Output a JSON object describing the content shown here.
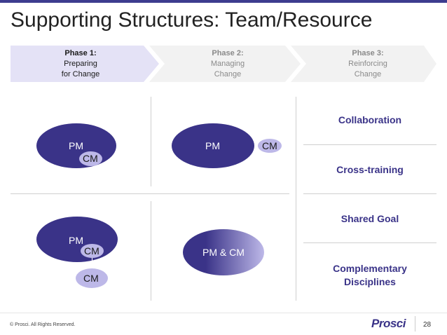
{
  "title": "Supporting Structures: Team/Resource",
  "phases": [
    {
      "title": "Phase 1:",
      "line1": "Preparing",
      "line2": "for Change",
      "active": true
    },
    {
      "title": "Phase 2:",
      "line1": "Managing",
      "line2": "Change",
      "active": false
    },
    {
      "title": "Phase 3:",
      "line1": "Reinforcing",
      "line2": "Change",
      "active": false
    }
  ],
  "diagrams": {
    "phase1": {
      "pm": "PM",
      "cm": "CM"
    },
    "phase2": {
      "pm": "PM",
      "cm": "CM"
    },
    "phase3": {
      "pm": "PM",
      "cm_inner": "CM",
      "cm_outer": "CM"
    },
    "phase4": {
      "combined": "PM & CM"
    }
  },
  "right_labels": {
    "collaboration": "Collaboration",
    "cross_training": "Cross-training",
    "shared_goal": "Shared Goal",
    "complementary_line1": "Complementary",
    "complementary_line2": "Disciplines"
  },
  "footer": {
    "copyright": "© Prosci. All Rights Reserved.",
    "logo": "Prosci",
    "page": "28"
  },
  "colors": {
    "pm": "#3a3388",
    "cm": "#bdb8e8",
    "active_phase": "#e4e2f6",
    "inactive_phase": "#f2f2f2"
  }
}
